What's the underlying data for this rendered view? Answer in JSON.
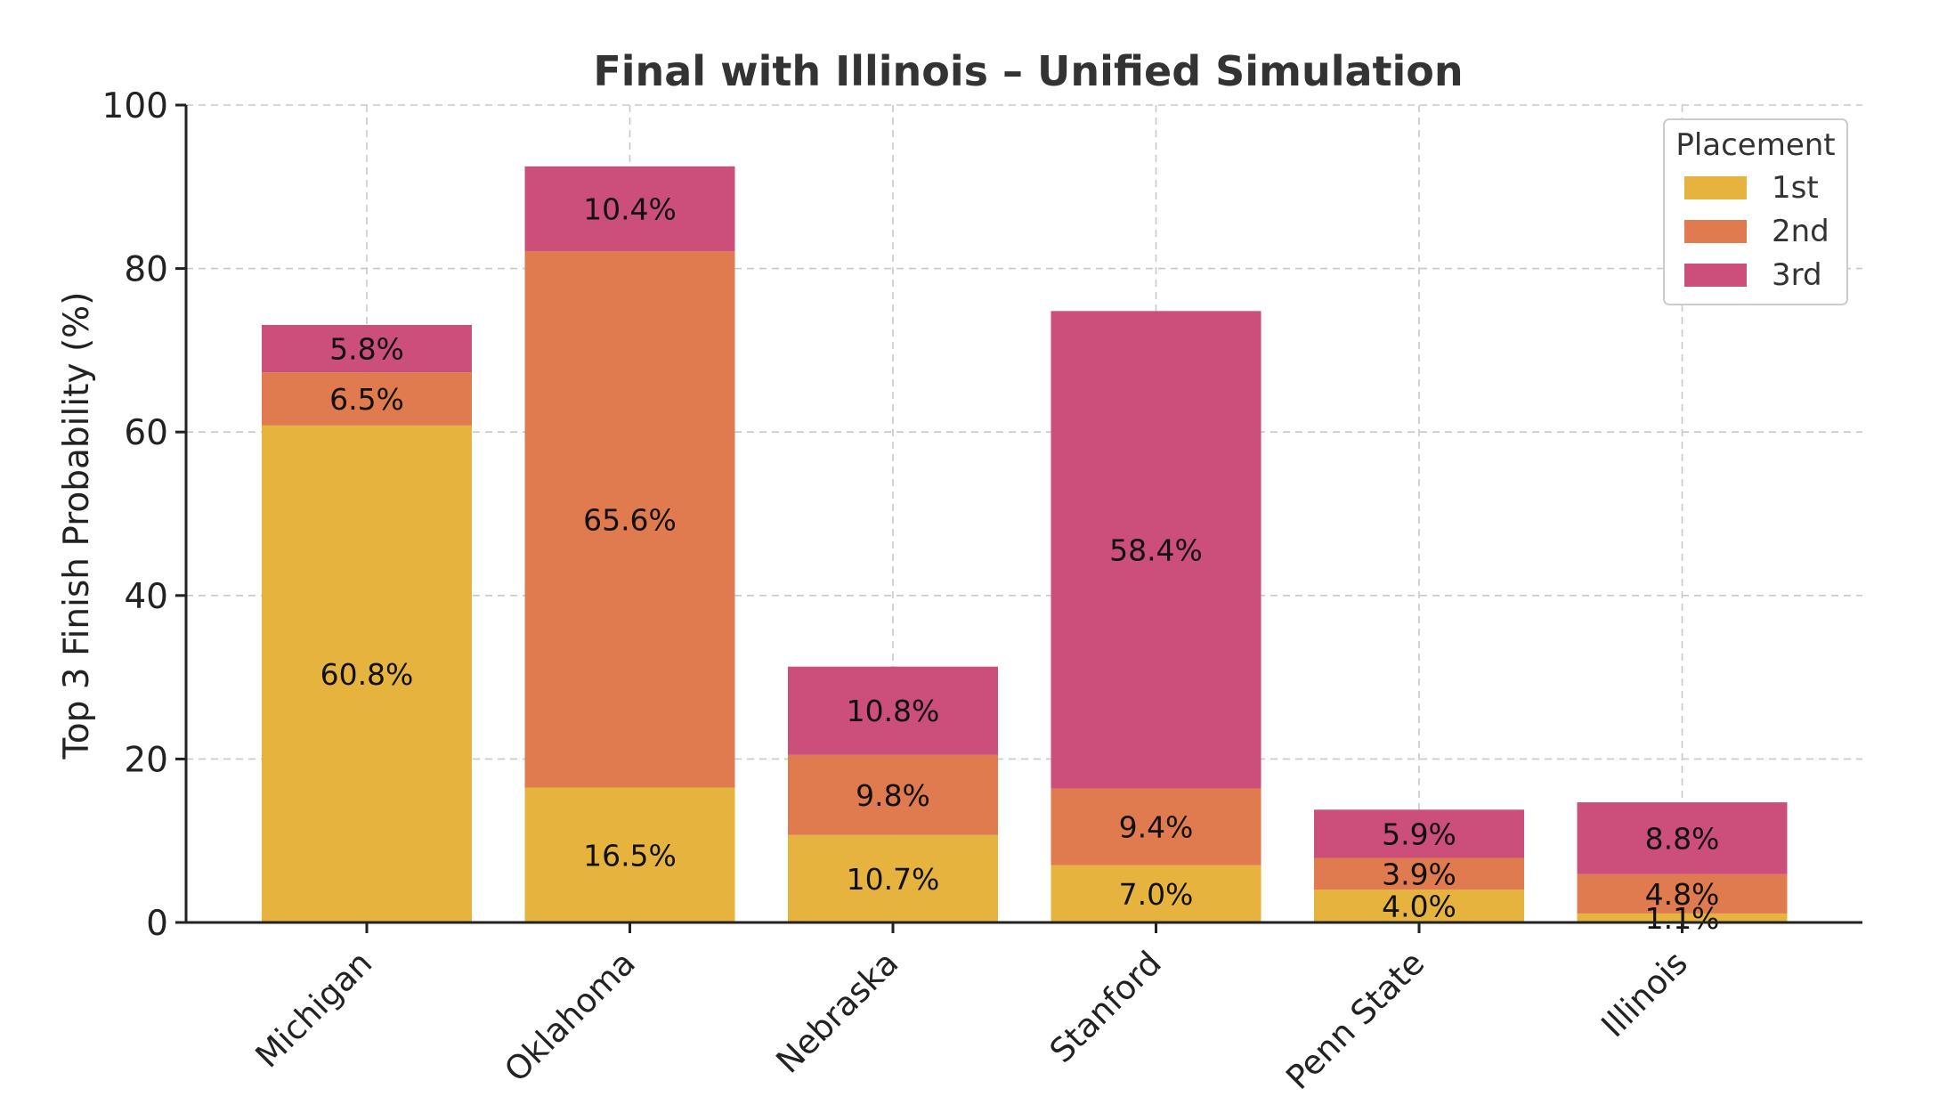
{
  "chart_data": {
    "type": "bar",
    "stacked": true,
    "title": "Final with Illinois – Unified Simulation",
    "xlabel": "",
    "ylabel": "Top 3 Finish Probability (%)",
    "ylim": [
      0,
      100
    ],
    "yticks": [
      "0",
      "20",
      "40",
      "60",
      "80",
      "100"
    ],
    "grid": true,
    "categories": [
      "Michigan",
      "Oklahoma",
      "Nebraska",
      "Stanford",
      "Penn State",
      "Illinois"
    ],
    "series": [
      {
        "name": "1st",
        "color": "#E6B43E",
        "values": [
          60.8,
          16.5,
          10.7,
          7.0,
          4.0,
          1.1
        ],
        "labels": [
          "60.8%",
          "16.5%",
          "10.7%",
          "7.0%",
          "4.0%",
          "1.1%"
        ]
      },
      {
        "name": "2nd",
        "color": "#E07A4F",
        "values": [
          6.5,
          65.6,
          9.8,
          9.4,
          3.9,
          4.8
        ],
        "labels": [
          "6.5%",
          "65.6%",
          "9.8%",
          "9.4%",
          "3.9%",
          "4.8%"
        ]
      },
      {
        "name": "3rd",
        "color": "#CC4E7A",
        "values": [
          5.8,
          10.4,
          10.8,
          58.4,
          5.9,
          8.8
        ],
        "labels": [
          "5.8%",
          "10.4%",
          "10.8%",
          "58.4%",
          "5.9%",
          "8.8%"
        ]
      }
    ],
    "legend": {
      "title": "Placement",
      "position": "top-right"
    }
  }
}
